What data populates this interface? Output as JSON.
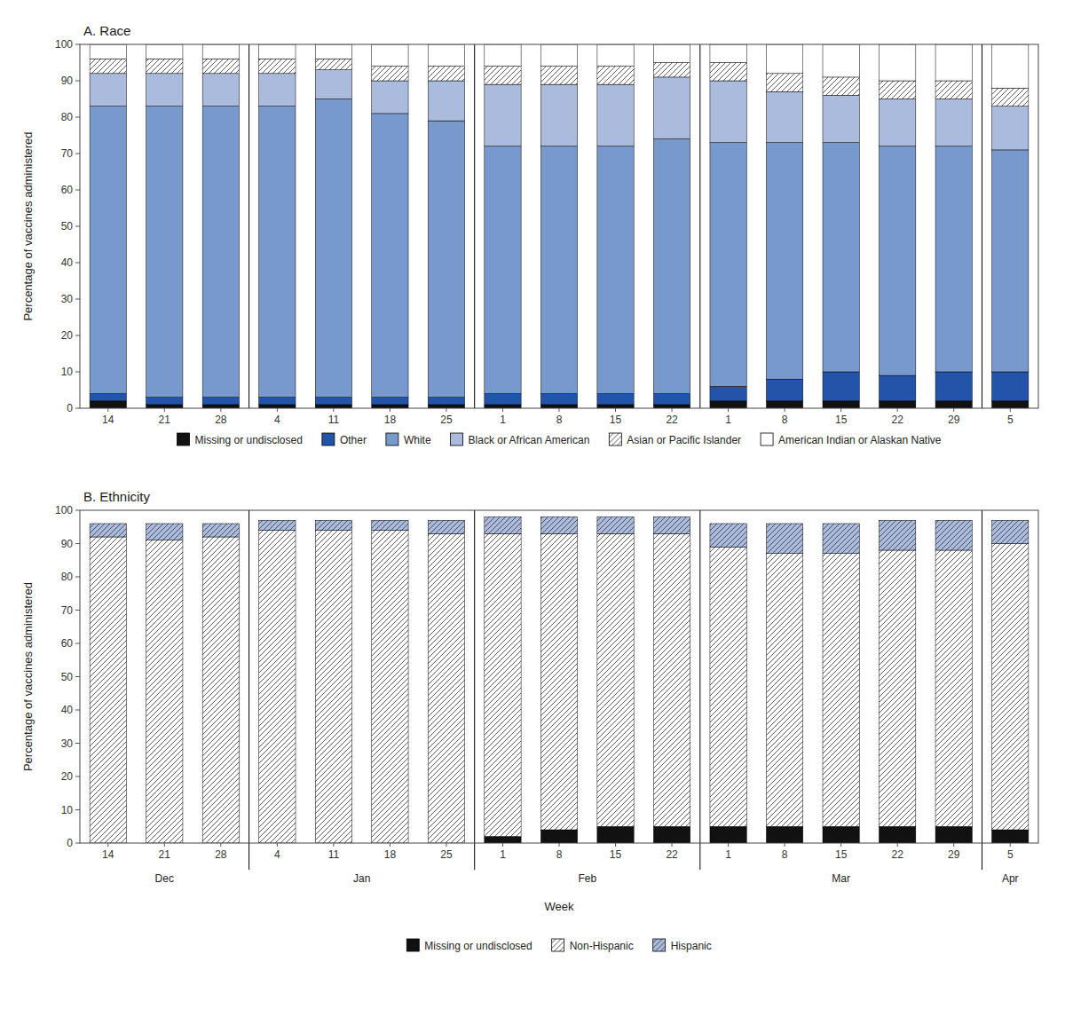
{
  "chart_data": [
    {
      "type": "bar",
      "stacked": true,
      "title": "A. Race",
      "categories": [
        "14",
        "21",
        "28",
        "4",
        "11",
        "18",
        "25",
        "1",
        "8",
        "15",
        "22",
        "1",
        "8",
        "15",
        "22",
        "29",
        "5"
      ],
      "series": [
        {
          "name": "Missing or undisclosed",
          "color": "#111111",
          "values": [
            2,
            1,
            1,
            1,
            1,
            1,
            1,
            1,
            1,
            1,
            1,
            2,
            2,
            2,
            2,
            2,
            2
          ]
        },
        {
          "name": "Other",
          "color": "#2255aa",
          "values": [
            2,
            2,
            2,
            2,
            2,
            2,
            2,
            3,
            3,
            3,
            3,
            4,
            6,
            8,
            7,
            8,
            8
          ]
        },
        {
          "name": "White",
          "color": "#7799cc",
          "values": [
            79,
            80,
            80,
            80,
            82,
            78,
            76,
            68,
            68,
            68,
            70,
            67,
            65,
            63,
            63,
            62,
            61
          ]
        },
        {
          "name": "Black or African American",
          "color": "#aabbdd",
          "values": [
            9,
            9,
            9,
            9,
            8,
            9,
            11,
            17,
            17,
            17,
            17,
            17,
            14,
            13,
            13,
            13,
            12
          ]
        },
        {
          "name": "Asian or Pacific Islander",
          "color": "#ffffff",
          "values": [
            4,
            4,
            4,
            4,
            3,
            4,
            4,
            5,
            5,
            5,
            4,
            5,
            5,
            5,
            5,
            5,
            5
          ]
        },
        {
          "name": "American Indian or Alaskan Native",
          "color": "#ffffff",
          "values": [
            4,
            4,
            4,
            4,
            4,
            6,
            6,
            6,
            6,
            6,
            5,
            5,
            8,
            9,
            10,
            10,
            12
          ]
        }
      ],
      "ylabel": "Percentage of vaccines administered",
      "ylim": [
        0,
        100
      ],
      "yticks": [
        0,
        10,
        20,
        30,
        40,
        50,
        60,
        70,
        80,
        90,
        100
      ],
      "vlines": [
        2.5,
        6.5,
        10.5,
        15.5
      ],
      "grid": false
    },
    {
      "type": "bar",
      "stacked": true,
      "title": "B. Ethnicity",
      "categories": [
        "14",
        "21",
        "28",
        "4",
        "11",
        "18",
        "25",
        "1",
        "8",
        "15",
        "22",
        "1",
        "8",
        "15",
        "22",
        "29",
        "5"
      ],
      "series": [
        {
          "name": "Missing or undisclosed",
          "color": "#111111",
          "values": [
            0,
            0,
            0,
            0,
            0,
            0,
            0,
            2,
            4,
            5,
            5,
            5,
            5,
            5,
            5,
            5,
            4
          ]
        },
        {
          "name": "Non-Hispanic",
          "color": "#ffffff",
          "values": [
            92,
            91,
            92,
            94,
            94,
            94,
            93,
            91,
            89,
            88,
            88,
            84,
            82,
            82,
            83,
            83,
            86
          ]
        },
        {
          "name": "Hispanic",
          "color": "#aabbdd",
          "values": [
            4,
            5,
            4,
            3,
            3,
            3,
            4,
            5,
            5,
            5,
            5,
            7,
            9,
            9,
            9,
            9,
            7
          ]
        }
      ],
      "ylabel": "Percentage of vaccines administered",
      "xlabel": "Week",
      "ylim": [
        0,
        100
      ],
      "yticks": [
        0,
        10,
        20,
        30,
        40,
        50,
        60,
        70,
        80,
        90,
        100
      ],
      "vlines": [
        2.5,
        6.5,
        10.5,
        15.5
      ],
      "annotations": [
        {
          "text": "Dec",
          "x": 1.0
        },
        {
          "text": "Jan",
          "x": 4.5
        },
        {
          "text": "Feb",
          "x": 8.5
        },
        {
          "text": "Mar",
          "x": 13.0
        },
        {
          "text": "Apr",
          "x": 16.0
        }
      ],
      "grid": false
    }
  ]
}
